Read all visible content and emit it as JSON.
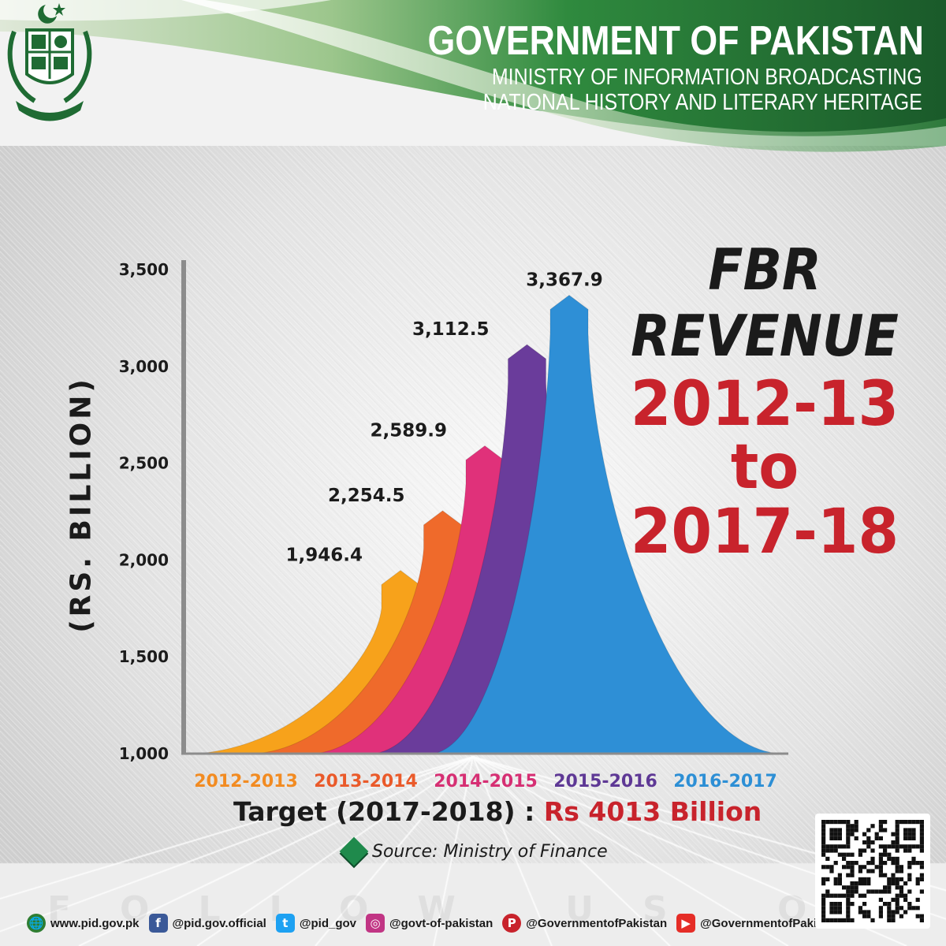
{
  "header": {
    "title": "GOVERNMENT OF PAKISTAN",
    "subtitle_line1": "MINISTRY OF INFORMATION BROADCASTING",
    "subtitle_line2": "NATIONAL HISTORY AND LITERARY HERITAGE",
    "emblem": "state-emblem-of-pakistan",
    "colors": {
      "green_dark": "#1e5f2f",
      "green": "#2f8a3e",
      "green_light": "#7fb06d"
    }
  },
  "headline": {
    "line1": "FBR",
    "line2": "REVENUE",
    "line3": "2012-13",
    "line4": "to",
    "line5": "2017-18",
    "color_dark": "#1b1b1b",
    "color_red": "#c8232c"
  },
  "chart_data": {
    "type": "bar",
    "ylabel": "(RS. BILLION)",
    "ylim": [
      1000,
      3500
    ],
    "yticks": [
      1000,
      1500,
      2000,
      2500,
      3000,
      3500
    ],
    "ytick_labels": [
      "1,000",
      "1,500",
      "2,000",
      "2,500",
      "3,000",
      "3,500"
    ],
    "categories": [
      "2012-2013",
      "2013-2014",
      "2014-2015",
      "2015-2016",
      "2016-2017"
    ],
    "values": [
      1946.4,
      2254.5,
      2589.9,
      3112.5,
      3367.9
    ],
    "value_labels": [
      "1,946.4",
      "2,254.5",
      "2,589.9",
      "3,112.5",
      "3,367.9"
    ],
    "colors": [
      "#f7a21b",
      "#ef6a2b",
      "#e0317a",
      "#6a3c9b",
      "#2e8fd6"
    ],
    "category_colors": [
      "#f28b21",
      "#ea5a2a",
      "#d62f73",
      "#5e3895",
      "#2d8fd5"
    ],
    "grid": false
  },
  "target": {
    "label": "Target (2017-2018) :",
    "value": "Rs 4013 Billion"
  },
  "source": "Source: Ministry of Finance",
  "follow_text": "FOLLOW US ON",
  "social": [
    {
      "icon": "globe-icon",
      "glyph": "🌐",
      "color": "#2e7d32",
      "text": "www.pid.gov.pk"
    },
    {
      "icon": "facebook-icon",
      "glyph": "f",
      "color": "#3b5998",
      "text": "@pid.gov.official"
    },
    {
      "icon": "twitter-icon",
      "glyph": "t",
      "color": "#1da1f2",
      "text": "@pid_gov"
    },
    {
      "icon": "instagram-icon",
      "glyph": "◎",
      "color": "#c13584",
      "text": "@govt-of-pakistan"
    },
    {
      "icon": "pinterest-icon",
      "glyph": "P",
      "color": "#c8232c",
      "text": "@GovernmentofPakistan"
    },
    {
      "icon": "youtube-icon",
      "glyph": "▶",
      "color": "#e52d27",
      "text": "@GovernmentofPakistan"
    }
  ],
  "qr": "qr-code"
}
